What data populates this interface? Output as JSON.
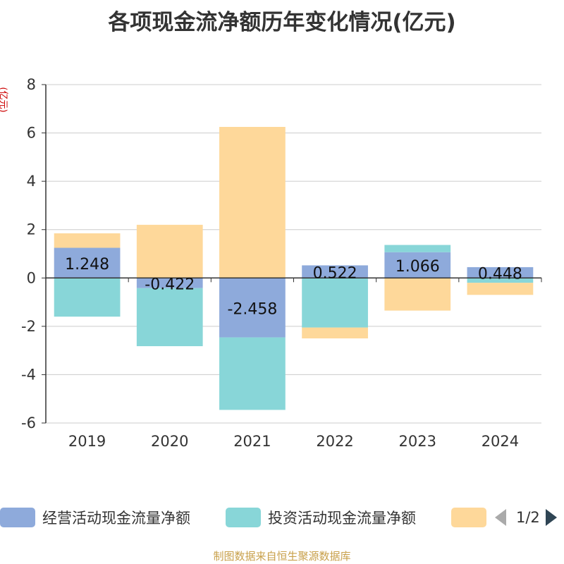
{
  "chart_data": {
    "type": "bar",
    "stacked": true,
    "title": "各项现金流净额历年变化情况(亿元)",
    "ylabel": "(亿元)",
    "ylim": [
      -6,
      8
    ],
    "yticks": [
      -6,
      -4,
      -2,
      0,
      2,
      4,
      6,
      8
    ],
    "categories": [
      "2019",
      "2020",
      "2021",
      "2022",
      "2023",
      "2024"
    ],
    "grid": true,
    "legend_position": "bottom",
    "series": [
      {
        "name": "经营活动现金流量净额",
        "color": "#8eaadb",
        "values": [
          1.248,
          -0.422,
          -2.458,
          0.522,
          1.066,
          0.448
        ]
      },
      {
        "name": "投资活动现金流量净额",
        "color": "#88d6d8",
        "values": [
          -1.6,
          -2.4,
          -3.0,
          -2.05,
          0.3,
          -0.2
        ]
      },
      {
        "name": "",
        "color": "#fed89a",
        "values": [
          0.6,
          2.2,
          6.25,
          -0.45,
          -1.35,
          -0.5
        ]
      }
    ],
    "data_labels": [
      "1.248",
      "-0.422",
      "-2.458",
      "0.522",
      "1.066",
      "0.448"
    ]
  },
  "legend": {
    "pager": "1/2"
  },
  "source": "制图数据来自恒生聚源数据库"
}
